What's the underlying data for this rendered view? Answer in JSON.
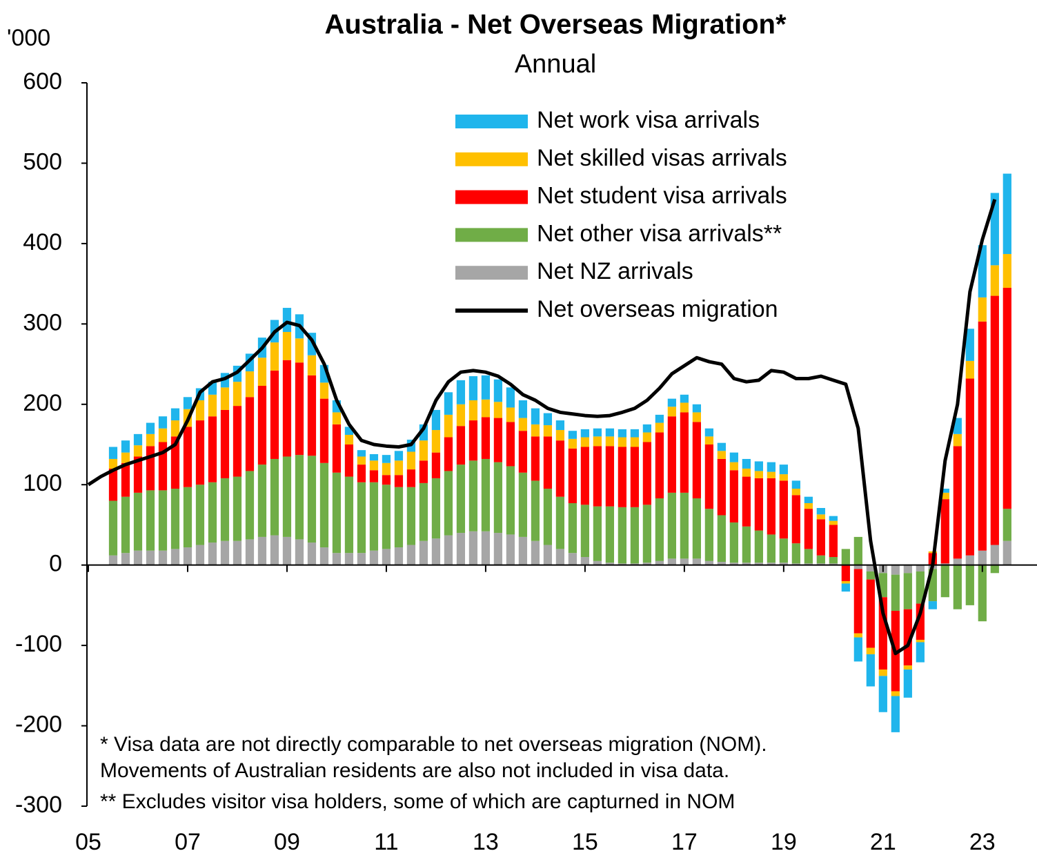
{
  "chart_data": {
    "type": "bar",
    "title": "Australia - Net Overseas Migration*",
    "subtitle": "Annual",
    "y_label": "'000",
    "annotations": [
      "* Visa data are not directly comparable to net overseas migration (NOM).",
      "Movements of Australian residents are also not included in visa data.",
      "** Excludes visitor visa holders, some of which are capturned in NOM"
    ],
    "xlim": [
      2005,
      2024.1
    ],
    "xticks": [
      {
        "value": 2005,
        "label": "05"
      },
      {
        "value": 2007,
        "label": "07"
      },
      {
        "value": 2009,
        "label": "09"
      },
      {
        "value": 2011,
        "label": "11"
      },
      {
        "value": 2013,
        "label": "13"
      },
      {
        "value": 2015,
        "label": "15"
      },
      {
        "value": 2017,
        "label": "17"
      },
      {
        "value": 2019,
        "label": "19"
      },
      {
        "value": 2021,
        "label": "21"
      },
      {
        "value": 2023,
        "label": "23"
      }
    ],
    "ylim": [
      -300,
      600
    ],
    "yticks": [
      600,
      500,
      400,
      300,
      200,
      100,
      0,
      -100,
      -200,
      -300
    ],
    "stacked": true,
    "grid": false,
    "legend": "upper-right",
    "x": [
      2005.5,
      2005.75,
      2006,
      2006.25,
      2006.5,
      2006.75,
      2007,
      2007.25,
      2007.5,
      2007.75,
      2008,
      2008.25,
      2008.5,
      2008.75,
      2009,
      2009.25,
      2009.5,
      2009.75,
      2010,
      2010.25,
      2010.5,
      2010.75,
      2011,
      2011.25,
      2011.5,
      2011.75,
      2012,
      2012.25,
      2012.5,
      2012.75,
      2013,
      2013.25,
      2013.5,
      2013.75,
      2014,
      2014.25,
      2014.5,
      2014.75,
      2015,
      2015.25,
      2015.5,
      2015.75,
      2016,
      2016.25,
      2016.5,
      2016.75,
      2017,
      2017.25,
      2017.5,
      2017.75,
      2018,
      2018.25,
      2018.5,
      2018.75,
      2019,
      2019.25,
      2019.5,
      2019.75,
      2020,
      2020.25,
      2020.5,
      2020.75,
      2021,
      2021.25,
      2021.5,
      2021.75,
      2022,
      2022.25,
      2022.5,
      2022.75,
      2023,
      2023.25,
      2023.5
    ],
    "series": [
      {
        "name": "Net work visa arrivals",
        "color": "#1fb5ec",
        "values": [
          15,
          15,
          14,
          14,
          15,
          15,
          15,
          15,
          16,
          18,
          20,
          22,
          25,
          28,
          30,
          30,
          28,
          22,
          15,
          10,
          8,
          8,
          10,
          12,
          15,
          20,
          25,
          28,
          30,
          30,
          30,
          28,
          25,
          22,
          20,
          15,
          12,
          10,
          10,
          10,
          10,
          10,
          10,
          10,
          10,
          10,
          10,
          10,
          10,
          10,
          12,
          12,
          12,
          12,
          12,
          10,
          8,
          8,
          6,
          -10,
          -30,
          -40,
          -45,
          -45,
          -35,
          -25,
          -10,
          5,
          20,
          40,
          65,
          90,
          100
        ]
      },
      {
        "name": "Net skilled visas arrivals",
        "color": "#ffc000",
        "values": [
          12,
          13,
          14,
          15,
          17,
          20,
          22,
          25,
          27,
          28,
          30,
          32,
          35,
          35,
          35,
          30,
          25,
          20,
          15,
          12,
          10,
          12,
          15,
          18,
          22,
          25,
          28,
          28,
          27,
          25,
          22,
          20,
          18,
          16,
          15,
          14,
          13,
          12,
          12,
          12,
          12,
          12,
          12,
          12,
          12,
          12,
          12,
          12,
          10,
          10,
          10,
          10,
          9,
          8,
          8,
          8,
          7,
          6,
          5,
          -3,
          -5,
          -8,
          -8,
          -6,
          -5,
          -3,
          2,
          8,
          15,
          22,
          30,
          38,
          42
        ]
      },
      {
        "name": "Net student visa arrivals",
        "color": "#ff0000",
        "values": [
          40,
          42,
          45,
          55,
          60,
          65,
          75,
          80,
          82,
          85,
          88,
          92,
          98,
          110,
          120,
          115,
          100,
          80,
          60,
          40,
          22,
          15,
          12,
          15,
          22,
          28,
          32,
          42,
          48,
          50,
          52,
          55,
          55,
          52,
          55,
          65,
          70,
          68,
          72,
          75,
          75,
          75,
          75,
          78,
          82,
          95,
          100,
          95,
          80,
          70,
          65,
          62,
          65,
          70,
          72,
          60,
          50,
          45,
          40,
          -20,
          -80,
          -85,
          -90,
          -100,
          -70,
          -45,
          15,
          80,
          140,
          220,
          285,
          310,
          275
        ]
      },
      {
        "name": "Net other visa arrivals**",
        "color": "#70ad47",
        "values": [
          68,
          70,
          72,
          75,
          75,
          75,
          75,
          75,
          75,
          78,
          80,
          85,
          90,
          95,
          100,
          105,
          108,
          105,
          100,
          95,
          88,
          85,
          80,
          75,
          72,
          72,
          75,
          80,
          85,
          88,
          90,
          88,
          85,
          80,
          75,
          70,
          65,
          62,
          65,
          68,
          70,
          70,
          70,
          72,
          78,
          82,
          82,
          75,
          65,
          58,
          50,
          45,
          40,
          35,
          30,
          25,
          18,
          10,
          8,
          20,
          35,
          -10,
          -30,
          -45,
          -45,
          -40,
          -40,
          -40,
          -55,
          -50,
          -70,
          -10,
          40
        ]
      },
      {
        "name": "Net NZ arrivals",
        "color": "#a6a6a6",
        "values": [
          12,
          15,
          18,
          18,
          18,
          20,
          22,
          25,
          28,
          30,
          30,
          32,
          35,
          37,
          35,
          32,
          28,
          22,
          15,
          15,
          15,
          18,
          20,
          22,
          25,
          30,
          33,
          37,
          40,
          42,
          42,
          40,
          38,
          35,
          30,
          25,
          20,
          15,
          10,
          5,
          3,
          2,
          2,
          3,
          5,
          8,
          8,
          8,
          5,
          4,
          3,
          3,
          3,
          3,
          3,
          2,
          2,
          2,
          2,
          0,
          -5,
          -8,
          -10,
          -12,
          -10,
          -8,
          -5,
          2,
          8,
          12,
          18,
          25,
          30
        ]
      },
      {
        "name": "Net overseas migration",
        "type": "line",
        "color": "#000000",
        "x": [
          2005,
          2005.25,
          2005.5,
          2005.75,
          2006,
          2006.25,
          2006.5,
          2006.75,
          2007,
          2007.25,
          2007.5,
          2007.75,
          2008,
          2008.25,
          2008.5,
          2008.75,
          2009,
          2009.25,
          2009.5,
          2009.75,
          2010,
          2010.25,
          2010.5,
          2010.75,
          2011,
          2011.25,
          2011.5,
          2011.75,
          2012,
          2012.25,
          2012.5,
          2012.75,
          2013,
          2013.25,
          2013.5,
          2013.75,
          2014,
          2014.25,
          2014.5,
          2014.75,
          2015,
          2015.25,
          2015.5,
          2015.75,
          2016,
          2016.25,
          2016.5,
          2016.75,
          2017,
          2017.25,
          2017.5,
          2017.75,
          2018,
          2018.25,
          2018.5,
          2018.75,
          2019,
          2019.25,
          2019.5,
          2019.75,
          2020,
          2020.25,
          2020.5,
          2020.75,
          2021,
          2021.25,
          2021.5,
          2021.75,
          2022,
          2022.25,
          2022.5,
          2022.75,
          2023,
          2023.25
        ],
        "values": [
          100,
          110,
          118,
          125,
          130,
          135,
          140,
          150,
          180,
          215,
          228,
          232,
          240,
          255,
          270,
          290,
          302,
          298,
          280,
          250,
          205,
          175,
          155,
          150,
          148,
          147,
          150,
          170,
          205,
          228,
          240,
          242,
          240,
          235,
          225,
          212,
          205,
          195,
          190,
          188,
          186,
          185,
          186,
          190,
          195,
          205,
          220,
          238,
          248,
          258,
          253,
          250,
          232,
          228,
          230,
          242,
          240,
          232,
          232,
          235,
          230,
          225,
          170,
          30,
          -60,
          -110,
          -100,
          -60,
          0,
          130,
          200,
          340,
          405,
          455
        ]
      }
    ]
  }
}
